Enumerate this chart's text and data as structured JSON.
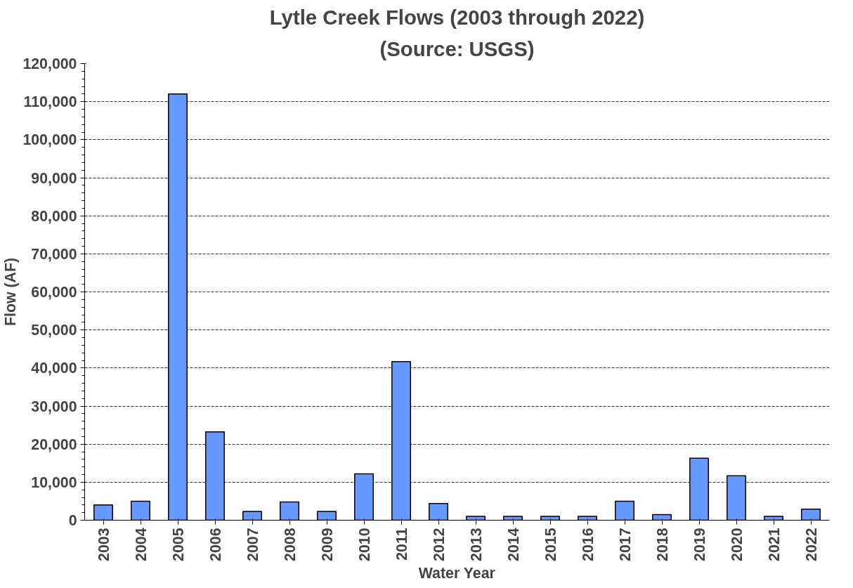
{
  "chart_data": {
    "type": "bar",
    "title": "Lytle Creek Flows (2003 through 2022)",
    "subtitle": "(Source: USGS)",
    "xlabel": "Water Year",
    "ylabel": "Flow (AF)",
    "categories": [
      "2003",
      "2004",
      "2005",
      "2006",
      "2007",
      "2008",
      "2009",
      "2010",
      "2011",
      "2012",
      "2013",
      "2014",
      "2015",
      "2016",
      "2017",
      "2018",
      "2019",
      "2020",
      "2021",
      "2022"
    ],
    "values": [
      4000,
      5000,
      112000,
      23200,
      2300,
      4800,
      2300,
      12200,
      41700,
      4400,
      1000,
      1000,
      1000,
      1000,
      5000,
      1500,
      16300,
      11700,
      1000,
      2900
    ],
    "color": "#6699ff",
    "ylim": [
      0,
      120000
    ],
    "yticks": [
      {
        "value": 0,
        "label": "0"
      },
      {
        "value": 10000,
        "label": "10,000"
      },
      {
        "value": 20000,
        "label": "20,000"
      },
      {
        "value": 30000,
        "label": "30,000"
      },
      {
        "value": 40000,
        "label": "40,000"
      },
      {
        "value": 50000,
        "label": "50,000"
      },
      {
        "value": 60000,
        "label": "60,000"
      },
      {
        "value": 70000,
        "label": "70,000"
      },
      {
        "value": 80000,
        "label": "80,000"
      },
      {
        "value": 90000,
        "label": "90,000"
      },
      {
        "value": 100000,
        "label": "100,000"
      },
      {
        "value": 110000,
        "label": "110,000"
      },
      {
        "value": 120000,
        "label": "120,000"
      }
    ],
    "grid": "y"
  }
}
